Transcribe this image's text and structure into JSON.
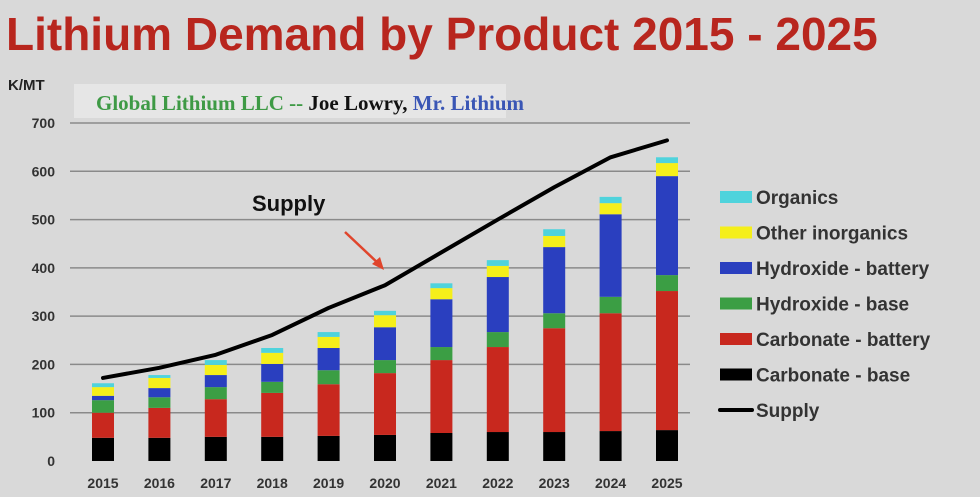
{
  "chart_data": {
    "type": "bar",
    "stacked": true,
    "title": "Lithium Demand by Product 2015 - 2025",
    "subtitle": {
      "part1": "Global Lithium LLC --",
      "part2": " Joe Lowry,",
      "part3": " Mr. Lithium"
    },
    "ylabel": "K/MT",
    "xlabel": "",
    "ylim": [
      0,
      700
    ],
    "yticks": [
      "0",
      "100",
      "200",
      "300",
      "400",
      "500",
      "600",
      "700"
    ],
    "grid": true,
    "legend_position": "right",
    "categories": [
      "2015",
      "2016",
      "2017",
      "2018",
      "2019",
      "2020",
      "2021",
      "2022",
      "2023",
      "2024",
      "2025"
    ],
    "series": [
      {
        "name": "Carbonate - base",
        "color": "#000000",
        "values": [
          48,
          48,
          50,
          50,
          52,
          54,
          58,
          60,
          60,
          62,
          64
        ]
      },
      {
        "name": "Carbonate - battery",
        "color": "#c8281e",
        "values": [
          52,
          62,
          78,
          91,
          107,
          128,
          151,
          176,
          215,
          244,
          288
        ]
      },
      {
        "name": "Hydroxide - base",
        "color": "#3b9e44",
        "values": [
          26,
          22,
          25,
          23,
          29,
          27,
          27,
          31,
          31,
          34,
          33
        ]
      },
      {
        "name": "Hydroxide - battery",
        "color": "#2a3fbf",
        "values": [
          9,
          19,
          25,
          37,
          46,
          68,
          99,
          114,
          137,
          171,
          205
        ]
      },
      {
        "name": "Other inorganics",
        "color": "#f5ef1a",
        "values": [
          18,
          21,
          21,
          23,
          23,
          25,
          23,
          23,
          23,
          23,
          27
        ]
      },
      {
        "name": "Organics",
        "color": "#4fd3dc",
        "values": [
          8,
          6,
          10,
          10,
          10,
          9,
          10,
          12,
          14,
          13,
          12
        ]
      }
    ],
    "line_series": {
      "name": "Supply",
      "color": "#000000",
      "values": [
        172,
        193,
        220,
        261,
        317,
        364,
        432,
        500,
        567,
        629,
        664
      ]
    },
    "annotation": {
      "text": "Supply",
      "arrow_color": "#e0452c"
    }
  }
}
